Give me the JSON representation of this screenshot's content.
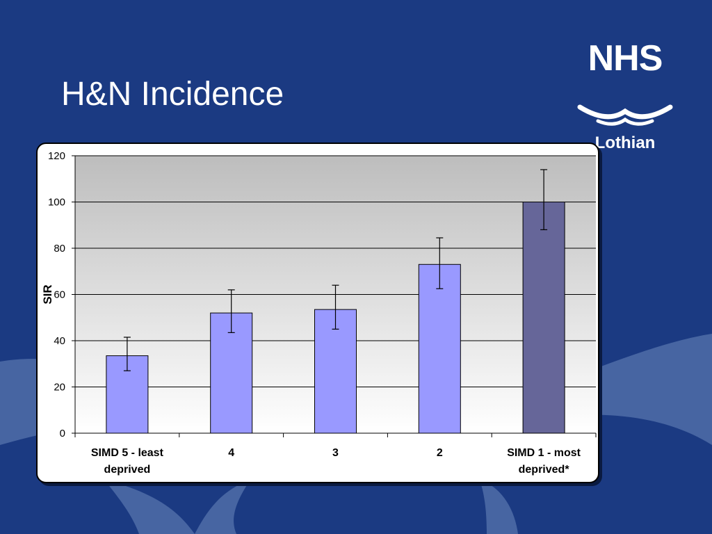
{
  "slide": {
    "title": "H&N Incidence",
    "logo": {
      "word": "NHS",
      "subtitle": "Lothian"
    }
  },
  "colors": {
    "background": "#1b3a82",
    "bar": "#9999ff",
    "bar_highlight": "#666699"
  },
  "chart_data": {
    "type": "bar",
    "categories": [
      "SIMD 5 - least deprived",
      "4",
      "3",
      "2",
      "SIMD 1 - most deprived*"
    ],
    "category_lines": [
      [
        "SIMD 5 - least",
        "deprived"
      ],
      [
        "4"
      ],
      [
        "3"
      ],
      [
        "2"
      ],
      [
        "SIMD 1 - most",
        "deprived*"
      ]
    ],
    "values": [
      33.5,
      52,
      53.5,
      73,
      100
    ],
    "error_low": [
      27,
      43.5,
      45,
      62.5,
      88
    ],
    "error_high": [
      41.5,
      62,
      64,
      84.5,
      114
    ],
    "highlight_index": 4,
    "ylabel": "SIR",
    "xlabel": "",
    "ylim": [
      0,
      120
    ],
    "yticks": [
      0,
      20,
      40,
      60,
      80,
      100,
      120
    ],
    "grid": true
  }
}
